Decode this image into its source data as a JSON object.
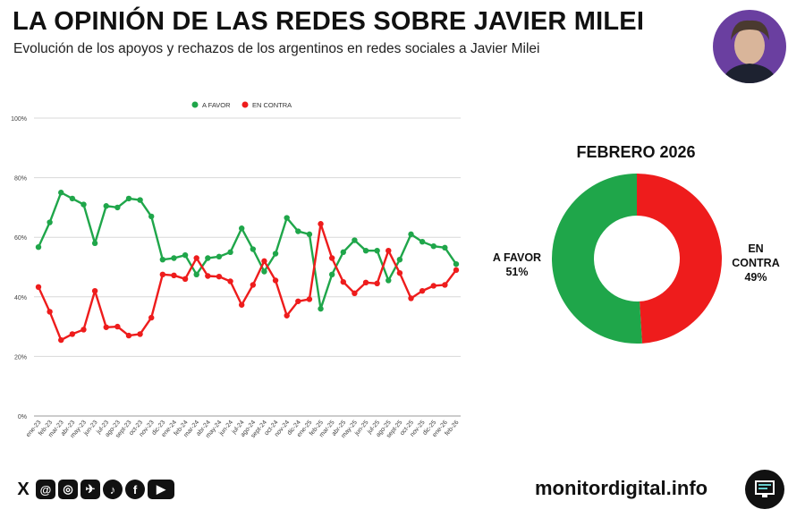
{
  "header": {
    "title": "LA OPINIÓN DE LAS REDES SOBRE JAVIER MILEI",
    "subtitle": "Evolución de los apoyos y rechazos de los argentinos en redes sociales a Javier Milei"
  },
  "chart_data": [
    {
      "type": "line",
      "ylim": [
        0,
        100
      ],
      "yticks": [
        "0%",
        "20%",
        "40%",
        "60%",
        "80%",
        "100%"
      ],
      "grid": true,
      "legend": "top",
      "categories": [
        "ene-23",
        "feb-23",
        "mar-23",
        "abr-23",
        "may-23",
        "jun-23",
        "jul-23",
        "ago-23",
        "sept-23",
        "oct-23",
        "nov-23",
        "dic-23",
        "ene-24",
        "feb-24",
        "mar-24",
        "abr-24",
        "may-24",
        "jun-24",
        "jul-24",
        "ago-24",
        "sept-24",
        "oct-24",
        "nov-24",
        "dic-24",
        "ene-25",
        "feb-25",
        "mar-25",
        "abr-25",
        "may-25",
        "jun-25",
        "jul-25",
        "ago-25",
        "sept-25",
        "oct-25",
        "nov-25",
        "dic-25",
        "ene-26",
        "feb-26"
      ],
      "series": [
        {
          "name": "A FAVOR",
          "color": "#1fa64a",
          "values": [
            56.7,
            65,
            75,
            73,
            71,
            58,
            70.5,
            70,
            73,
            72.5,
            67,
            52.5,
            53,
            54,
            47.5,
            53,
            53.5,
            55,
            63,
            56,
            48.5,
            54.5,
            66.5,
            62,
            61,
            36,
            47.5,
            55,
            59,
            55.5,
            55.5,
            45.5,
            52.5,
            61,
            58.5,
            57,
            56.5,
            51
          ]
        },
        {
          "name": "EN CONTRA",
          "color": "#ee1c1c",
          "values": [
            43.3,
            35,
            25.5,
            27.5,
            29,
            42,
            29.8,
            30,
            27,
            27.5,
            33,
            47.5,
            47.2,
            46,
            53,
            47,
            46.8,
            45.2,
            37.3,
            44,
            52,
            45.5,
            33.7,
            38.5,
            39.2,
            64.5,
            53,
            45,
            41.2,
            44.8,
            44.5,
            55.5,
            48,
            39.5,
            42,
            43.7,
            44,
            49
          ]
        }
      ]
    },
    {
      "type": "pie",
      "title": "FEBRERO 2026",
      "donut": true,
      "slices": [
        {
          "label": "A FAVOR",
          "value": 51,
          "display": "51%",
          "color": "#1fa64a"
        },
        {
          "label": "EN CONTRA",
          "value": 49,
          "display": "49%",
          "color": "#ee1c1c"
        }
      ]
    }
  ],
  "footer": {
    "url": "monitordigital.info",
    "social_icons": [
      "x-icon",
      "threads-icon",
      "instagram-icon",
      "telegram-icon",
      "tiktok-icon",
      "facebook-icon",
      "youtube-icon"
    ]
  }
}
